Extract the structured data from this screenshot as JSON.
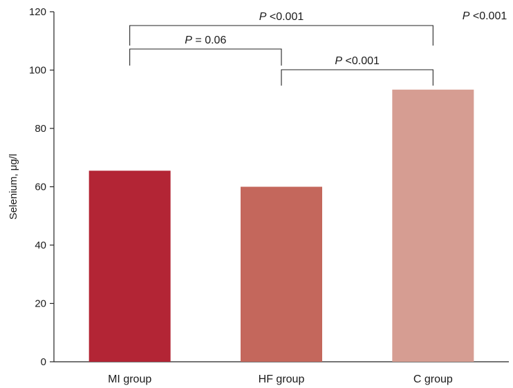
{
  "chart_data": {
    "type": "bar",
    "categories": [
      "MI group",
      "HF group",
      "C group"
    ],
    "values": [
      65.5,
      60,
      93.3
    ],
    "colors": [
      "#b32535",
      "#c4675c",
      "#d69d92"
    ],
    "ylabel": "Selenium, μg/l",
    "xlabel": "",
    "ylim": [
      0,
      120
    ],
    "yticks": [
      0,
      20,
      40,
      60,
      80,
      100,
      120
    ],
    "grid": false,
    "annotations": [
      {
        "from": 0,
        "to": 2,
        "p_symbol": "P",
        "p_text": " <0.001"
      },
      {
        "from": 0,
        "to": 1,
        "p_symbol": "P",
        "p_text": " = 0.06"
      },
      {
        "from": 1,
        "to": 2,
        "p_symbol": "P",
        "p_text": " <0.001"
      }
    ],
    "overall_p": {
      "p_symbol": "P",
      "p_text": " <0.001"
    }
  }
}
